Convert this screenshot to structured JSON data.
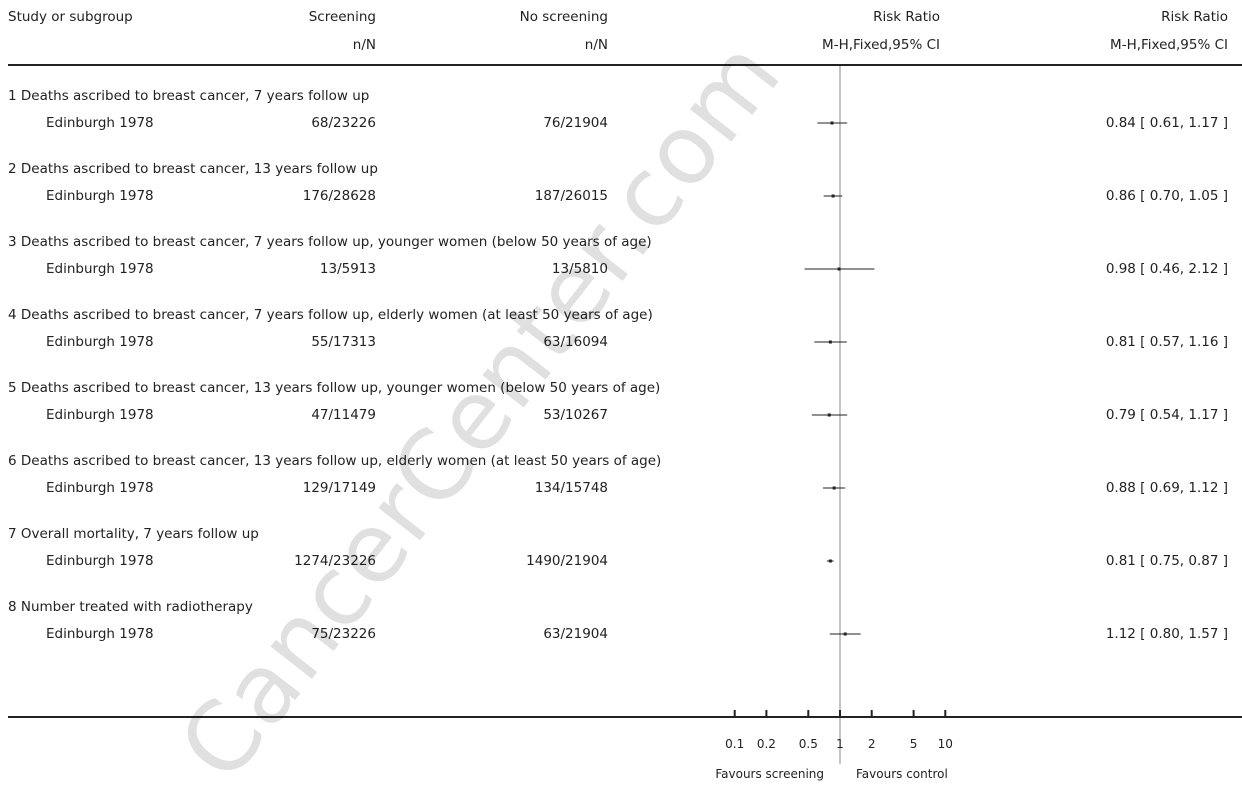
{
  "header": {
    "col_study": "Study or subgroup",
    "col_screening": "Screening",
    "col_noscreening": "No screening",
    "col_rr_plot": "Risk Ratio",
    "col_rr_text": "Risk Ratio",
    "sub_screening": "n/N",
    "sub_noscreening": "n/N",
    "sub_rr_plot": "M-H,Fixed,95% CI",
    "sub_rr_text": "M-H,Fixed,95% CI"
  },
  "watermark": "CancerCenter.com",
  "chart_data": {
    "type": "forest",
    "scale": "log",
    "xlim": [
      0.1,
      10
    ],
    "reference_line": 1,
    "x_ticks": [
      "0.1",
      "0.2",
      "0.5",
      "1",
      "2",
      "5",
      "10"
    ],
    "x_tick_values": [
      0.1,
      0.2,
      0.5,
      1,
      2,
      5,
      10
    ],
    "favours_left": "Favours screening",
    "favours_right": "Favours control",
    "subgroups": [
      {
        "title": "1 Deaths ascribed to breast cancer, 7 years follow up",
        "study": "Edinburgh 1978",
        "screening": "68/23226",
        "no_screening": "76/21904",
        "rr": 0.84,
        "lo": 0.61,
        "hi": 1.17,
        "ci_text": "0.84 [ 0.61, 1.17 ]"
      },
      {
        "title": "2 Deaths ascribed to breast cancer, 13 years follow up",
        "study": "Edinburgh 1978",
        "screening": "176/28628",
        "no_screening": "187/26015",
        "rr": 0.86,
        "lo": 0.7,
        "hi": 1.05,
        "ci_text": "0.86 [ 0.70, 1.05 ]"
      },
      {
        "title": "3 Deaths ascribed to breast cancer, 7 years follow up, younger women (below 50 years of age)",
        "study": "Edinburgh 1978",
        "screening": "13/5913",
        "no_screening": "13/5810",
        "rr": 0.98,
        "lo": 0.46,
        "hi": 2.12,
        "ci_text": "0.98 [ 0.46, 2.12 ]"
      },
      {
        "title": "4 Deaths ascribed to breast cancer, 7 years follow up, elderly women (at least 50 years of age)",
        "study": "Edinburgh 1978",
        "screening": "55/17313",
        "no_screening": "63/16094",
        "rr": 0.81,
        "lo": 0.57,
        "hi": 1.16,
        "ci_text": "0.81 [ 0.57, 1.16 ]"
      },
      {
        "title": "5 Deaths ascribed to breast cancer, 13 years follow up, younger women (below 50 years of age)",
        "study": "Edinburgh 1978",
        "screening": "47/11479",
        "no_screening": "53/10267",
        "rr": 0.79,
        "lo": 0.54,
        "hi": 1.17,
        "ci_text": "0.79 [ 0.54, 1.17 ]"
      },
      {
        "title": "6 Deaths ascribed to breast cancer, 13 years follow up, elderly women (at least 50 years of age)",
        "study": "Edinburgh 1978",
        "screening": "129/17149",
        "no_screening": "134/15748",
        "rr": 0.88,
        "lo": 0.69,
        "hi": 1.12,
        "ci_text": "0.88 [ 0.69, 1.12 ]"
      },
      {
        "title": "7 Overall mortality, 7 years follow up",
        "study": "Edinburgh 1978",
        "screening": "1274/23226",
        "no_screening": "1490/21904",
        "rr": 0.81,
        "lo": 0.75,
        "hi": 0.87,
        "ci_text": "0.81 [ 0.75, 0.87 ]"
      },
      {
        "title": "8 Number treated with radiotherapy",
        "study": "Edinburgh 1978",
        "screening": "75/23226",
        "no_screening": "63/21904",
        "rr": 1.12,
        "lo": 0.8,
        "hi": 1.57,
        "ci_text": "1.12 [ 0.80, 1.57 ]"
      }
    ]
  }
}
